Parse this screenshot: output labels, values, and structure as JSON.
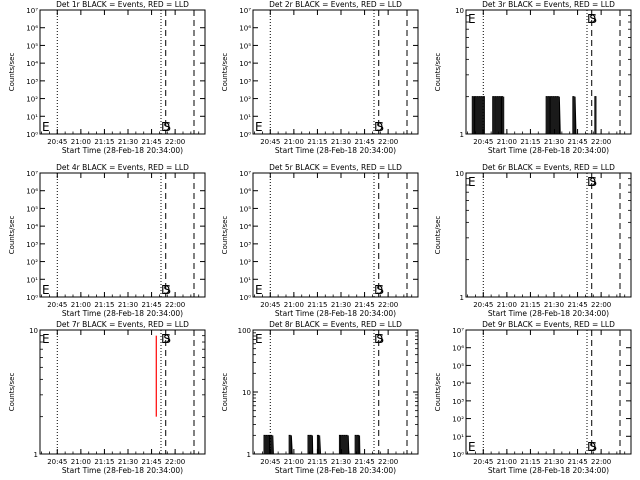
{
  "chart_data": [
    {
      "type": "line",
      "title": "Det 1r BLACK = Events, RED = LLD",
      "xlabel": "Start Time (28-Feb-18 20:34:00)",
      "ylabel": "Counts/sec",
      "yscale": "log",
      "ylim": [
        1,
        10000000
      ],
      "y_tick_labels": [
        "10⁰",
        "10¹",
        "10²",
        "10³",
        "10⁴",
        "10⁵",
        "10⁶",
        "10⁷"
      ],
      "x_tick_labels": [
        "20:45",
        "21:00",
        "21:15",
        "21:30",
        "21:45",
        "22:00"
      ],
      "x_tick_minutes": [
        11,
        26,
        41,
        56,
        71,
        86
      ],
      "xlim_minutes": [
        0,
        105
      ],
      "markers": [
        {
          "label": "E",
          "minute": 0
        },
        {
          "label": "D",
          "minute": 77
        },
        {
          "label": "S",
          "minute": 78.5
        }
      ],
      "vlines": [
        {
          "minute": 11,
          "style": "dotted"
        },
        {
          "minute": 77,
          "style": "dotted"
        },
        {
          "minute": 80,
          "style": "dashed"
        },
        {
          "minute": 98,
          "style": "dashed"
        }
      ],
      "series": []
    },
    {
      "type": "line",
      "title": "Det 2r BLACK = Events, RED = LLD",
      "xlabel": "Start Time (28-Feb-18 20:34:00)",
      "ylabel": "Counts/sec",
      "yscale": "log",
      "ylim": [
        1,
        10000000
      ],
      "y_tick_labels": [
        "10⁰",
        "10¹",
        "10²",
        "10³",
        "10⁴",
        "10⁵",
        "10⁶",
        "10⁷"
      ],
      "x_tick_labels": [
        "20:45",
        "21:00",
        "21:15",
        "21:30",
        "21:45",
        "22:00"
      ],
      "x_tick_minutes": [
        11,
        26,
        41,
        56,
        71,
        86
      ],
      "xlim_minutes": [
        0,
        105
      ],
      "markers": [
        {
          "label": "E",
          "minute": 0
        },
        {
          "label": "D",
          "minute": 77
        },
        {
          "label": "S",
          "minute": 78.5
        }
      ],
      "vlines": [
        {
          "minute": 11,
          "style": "dotted"
        },
        {
          "minute": 77,
          "style": "dotted"
        },
        {
          "minute": 80,
          "style": "dashed"
        },
        {
          "minute": 98,
          "style": "dashed"
        }
      ],
      "series": []
    },
    {
      "type": "line",
      "title": "Det 3r BLACK = Events, RED = LLD",
      "xlabel": "Start Time (28-Feb-18 20:34:00)",
      "ylabel": "Counts/sec",
      "yscale": "log",
      "ylim": [
        1,
        10
      ],
      "y_tick_labels": [
        "1",
        "10"
      ],
      "x_tick_labels": [
        "20:45",
        "21:00",
        "21:15",
        "21:30",
        "21:45",
        "22:00"
      ],
      "x_tick_minutes": [
        11,
        26,
        41,
        56,
        71,
        86
      ],
      "xlim_minutes": [
        0,
        105
      ],
      "markers": [
        {
          "label": "E",
          "minute": 0
        },
        {
          "label": "D",
          "minute": 77
        },
        {
          "label": "S",
          "minute": 78.5
        }
      ],
      "vlines": [
        {
          "minute": 11,
          "style": "dotted"
        },
        {
          "minute": 77,
          "style": "dotted"
        },
        {
          "minute": 80,
          "style": "dashed"
        },
        {
          "minute": 98,
          "style": "dashed"
        }
      ],
      "series": [
        {
          "color": "#000000",
          "style": "bursts",
          "bursts": [
            [
              4,
              12
            ],
            [
              17,
              24
            ],
            [
              51,
              60
            ],
            [
              68,
              70
            ],
            [
              82,
              83
            ]
          ],
          "value": 2
        }
      ]
    },
    {
      "type": "line",
      "title": "Det 4r BLACK = Events, RED = LLD",
      "xlabel": "Start Time (28-Feb-18 20:34:00)",
      "ylabel": "Counts/sec",
      "yscale": "log",
      "ylim": [
        1,
        10000000
      ],
      "y_tick_labels": [
        "10⁰",
        "10¹",
        "10²",
        "10³",
        "10⁴",
        "10⁵",
        "10⁶",
        "10⁷"
      ],
      "x_tick_labels": [
        "20:45",
        "21:00",
        "21:15",
        "21:30",
        "21:45",
        "22:00"
      ],
      "x_tick_minutes": [
        11,
        26,
        41,
        56,
        71,
        86
      ],
      "xlim_minutes": [
        0,
        105
      ],
      "markers": [
        {
          "label": "E",
          "minute": 0
        },
        {
          "label": "D",
          "minute": 77
        },
        {
          "label": "S",
          "minute": 78.5
        }
      ],
      "vlines": [
        {
          "minute": 11,
          "style": "dotted"
        },
        {
          "minute": 77,
          "style": "dotted"
        },
        {
          "minute": 80,
          "style": "dashed"
        },
        {
          "minute": 98,
          "style": "dashed"
        }
      ],
      "series": []
    },
    {
      "type": "line",
      "title": "Det 5r BLACK = Events, RED = LLD",
      "xlabel": "Start Time (28-Feb-18 20:34:00)",
      "ylabel": "Counts/sec",
      "yscale": "log",
      "ylim": [
        1,
        10000000
      ],
      "y_tick_labels": [
        "10⁰",
        "10¹",
        "10²",
        "10³",
        "10⁴",
        "10⁵",
        "10⁶",
        "10⁷"
      ],
      "x_tick_labels": [
        "20:45",
        "21:00",
        "21:15",
        "21:30",
        "21:45",
        "22:00"
      ],
      "x_tick_minutes": [
        11,
        26,
        41,
        56,
        71,
        86
      ],
      "xlim_minutes": [
        0,
        105
      ],
      "markers": [
        {
          "label": "E",
          "minute": 0
        },
        {
          "label": "D",
          "minute": 77
        },
        {
          "label": "S",
          "minute": 78.5
        }
      ],
      "vlines": [
        {
          "minute": 11,
          "style": "dotted"
        },
        {
          "minute": 77,
          "style": "dotted"
        },
        {
          "minute": 80,
          "style": "dashed"
        },
        {
          "minute": 98,
          "style": "dashed"
        }
      ],
      "series": []
    },
    {
      "type": "line",
      "title": "Det 6r BLACK = Events, RED = LLD",
      "xlabel": "Start Time (28-Feb-18 20:34:00)",
      "ylabel": "Counts/sec",
      "yscale": "log",
      "ylim": [
        1,
        10
      ],
      "y_tick_labels": [
        "1",
        "10"
      ],
      "x_tick_labels": [
        "20:45",
        "21:00",
        "21:15",
        "21:30",
        "21:45",
        "22:00"
      ],
      "x_tick_minutes": [
        11,
        26,
        41,
        56,
        71,
        86
      ],
      "xlim_minutes": [
        0,
        105
      ],
      "markers": [
        {
          "label": "E",
          "minute": 0
        },
        {
          "label": "D",
          "minute": 77
        },
        {
          "label": "S",
          "minute": 78.5
        }
      ],
      "vlines": [
        {
          "minute": 11,
          "style": "dotted"
        },
        {
          "minute": 77,
          "style": "dotted"
        },
        {
          "minute": 80,
          "style": "dashed"
        },
        {
          "minute": 98,
          "style": "dashed"
        }
      ],
      "series": []
    },
    {
      "type": "line",
      "title": "Det 7r BLACK = Events, RED = LLD",
      "xlabel": "Start Time (28-Feb-18 20:34:00)",
      "ylabel": "Counts/sec",
      "yscale": "log",
      "ylim": [
        1,
        10
      ],
      "y_tick_labels": [
        "1",
        "10"
      ],
      "x_tick_labels": [
        "20:45",
        "21:00",
        "21:15",
        "21:30",
        "21:45",
        "22:00"
      ],
      "x_tick_minutes": [
        11,
        26,
        41,
        56,
        71,
        86
      ],
      "xlim_minutes": [
        0,
        105
      ],
      "markers": [
        {
          "label": "E",
          "minute": 0
        },
        {
          "label": "D",
          "minute": 77
        },
        {
          "label": "S",
          "minute": 78.5
        }
      ],
      "vlines": [
        {
          "minute": 11,
          "style": "dotted"
        },
        {
          "minute": 77,
          "style": "dotted"
        },
        {
          "minute": 80,
          "style": "dashed"
        },
        {
          "minute": 98,
          "style": "dashed"
        }
      ],
      "series": [
        {
          "color": "#ff0000",
          "style": "segment",
          "minute": 74,
          "y_range": [
            2,
            9
          ]
        }
      ]
    },
    {
      "type": "line",
      "title": "Det 8r BLACK = Events, RED = LLD",
      "xlabel": "Start Time (28-Feb-18 20:34:00)",
      "ylabel": "Counts/sec",
      "yscale": "log",
      "ylim": [
        1,
        100
      ],
      "y_tick_labels": [
        "1",
        "10",
        "100"
      ],
      "x_tick_labels": [
        "20:45",
        "21:00",
        "21:15",
        "21:30",
        "21:45",
        "22:00"
      ],
      "x_tick_minutes": [
        11,
        26,
        41,
        56,
        71,
        86
      ],
      "xlim_minutes": [
        0,
        105
      ],
      "markers": [
        {
          "label": "E",
          "minute": 0
        },
        {
          "label": "D",
          "minute": 77
        },
        {
          "label": "S",
          "minute": 78.5
        }
      ],
      "vlines": [
        {
          "minute": 11,
          "style": "dotted"
        },
        {
          "minute": 77,
          "style": "dotted"
        },
        {
          "minute": 80,
          "style": "dashed"
        },
        {
          "minute": 98,
          "style": "dashed"
        }
      ],
      "series": [
        {
          "color": "#000000",
          "style": "bursts",
          "bursts": [
            [
              7,
              13
            ],
            [
              23,
              25
            ],
            [
              35,
              38
            ],
            [
              41,
              43
            ],
            [
              55,
              61
            ],
            [
              65,
              68
            ]
          ],
          "value": 2
        }
      ]
    },
    {
      "type": "line",
      "title": "Det 9r BLACK = Events, RED = LLD",
      "xlabel": "Start Time (28-Feb-18 20:34:00)",
      "ylabel": "Counts/sec",
      "yscale": "log",
      "ylim": [
        1,
        10000000
      ],
      "y_tick_labels": [
        "10⁰",
        "10¹",
        "10²",
        "10³",
        "10⁴",
        "10⁵",
        "10⁶",
        "10⁷"
      ],
      "x_tick_labels": [
        "20:45",
        "21:00",
        "21:15",
        "21:30",
        "21:45",
        "22:00"
      ],
      "x_tick_minutes": [
        11,
        26,
        41,
        56,
        71,
        86
      ],
      "xlim_minutes": [
        0,
        105
      ],
      "markers": [
        {
          "label": "E",
          "minute": 0
        },
        {
          "label": "D",
          "minute": 77
        },
        {
          "label": "S",
          "minute": 78.5
        }
      ],
      "vlines": [
        {
          "minute": 11,
          "style": "dotted"
        },
        {
          "minute": 77,
          "style": "dotted"
        },
        {
          "minute": 80,
          "style": "dashed"
        },
        {
          "minute": 98,
          "style": "dashed"
        }
      ],
      "series": []
    }
  ]
}
